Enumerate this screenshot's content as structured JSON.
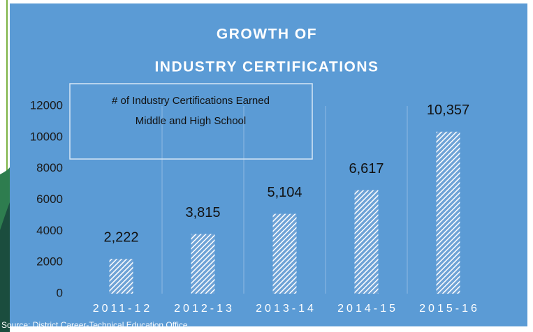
{
  "chart_data": {
    "type": "bar",
    "title_lines": [
      "GROWTH OF",
      "INDUSTRY  CERTIFICATIONS"
    ],
    "legend_lines": [
      "# of Industry Certifications Earned",
      "Middle and High School"
    ],
    "categories": [
      "2011-12",
      "2012-13",
      "2013-14",
      "2014-15",
      "2015-16"
    ],
    "values": [
      2222,
      3815,
      5104,
      6617,
      10357
    ],
    "value_labels": [
      "2,222",
      "3,815",
      "5,104",
      "6,617",
      "10,357"
    ],
    "color": "#ffffff",
    "ylim": [
      0,
      12000
    ],
    "yticks": [
      0,
      2000,
      4000,
      6000,
      8000,
      10000,
      12000
    ],
    "grid": false,
    "source": "Source: District Career-Technical Education Office."
  }
}
